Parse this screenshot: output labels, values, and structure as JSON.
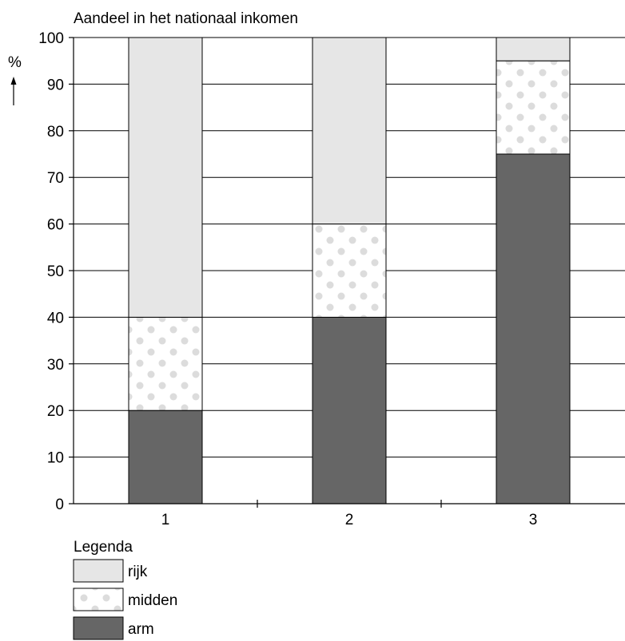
{
  "chart_data": {
    "type": "bar",
    "stacked": true,
    "title": "Aandeel in het nationaal inkomen",
    "ylabel": "%",
    "xlabel": "",
    "ylim": [
      0,
      100
    ],
    "yticks": [
      0,
      10,
      20,
      30,
      40,
      50,
      60,
      70,
      80,
      90,
      100
    ],
    "categories": [
      "1",
      "2",
      "3"
    ],
    "series": [
      {
        "name": "arm",
        "values": [
          20,
          40,
          75
        ],
        "color": "#666666",
        "pattern": "solid"
      },
      {
        "name": "midden",
        "values": [
          20,
          20,
          20
        ],
        "color": "#dcdcdc",
        "pattern": "dots"
      },
      {
        "name": "rijk",
        "values": [
          60,
          40,
          5
        ],
        "color": "#e6e6e6",
        "pattern": "solid"
      }
    ],
    "grid": true,
    "legend": {
      "title": "Legenda",
      "placement": "bottom-left",
      "items": [
        "rijk",
        "midden",
        "arm"
      ]
    }
  }
}
